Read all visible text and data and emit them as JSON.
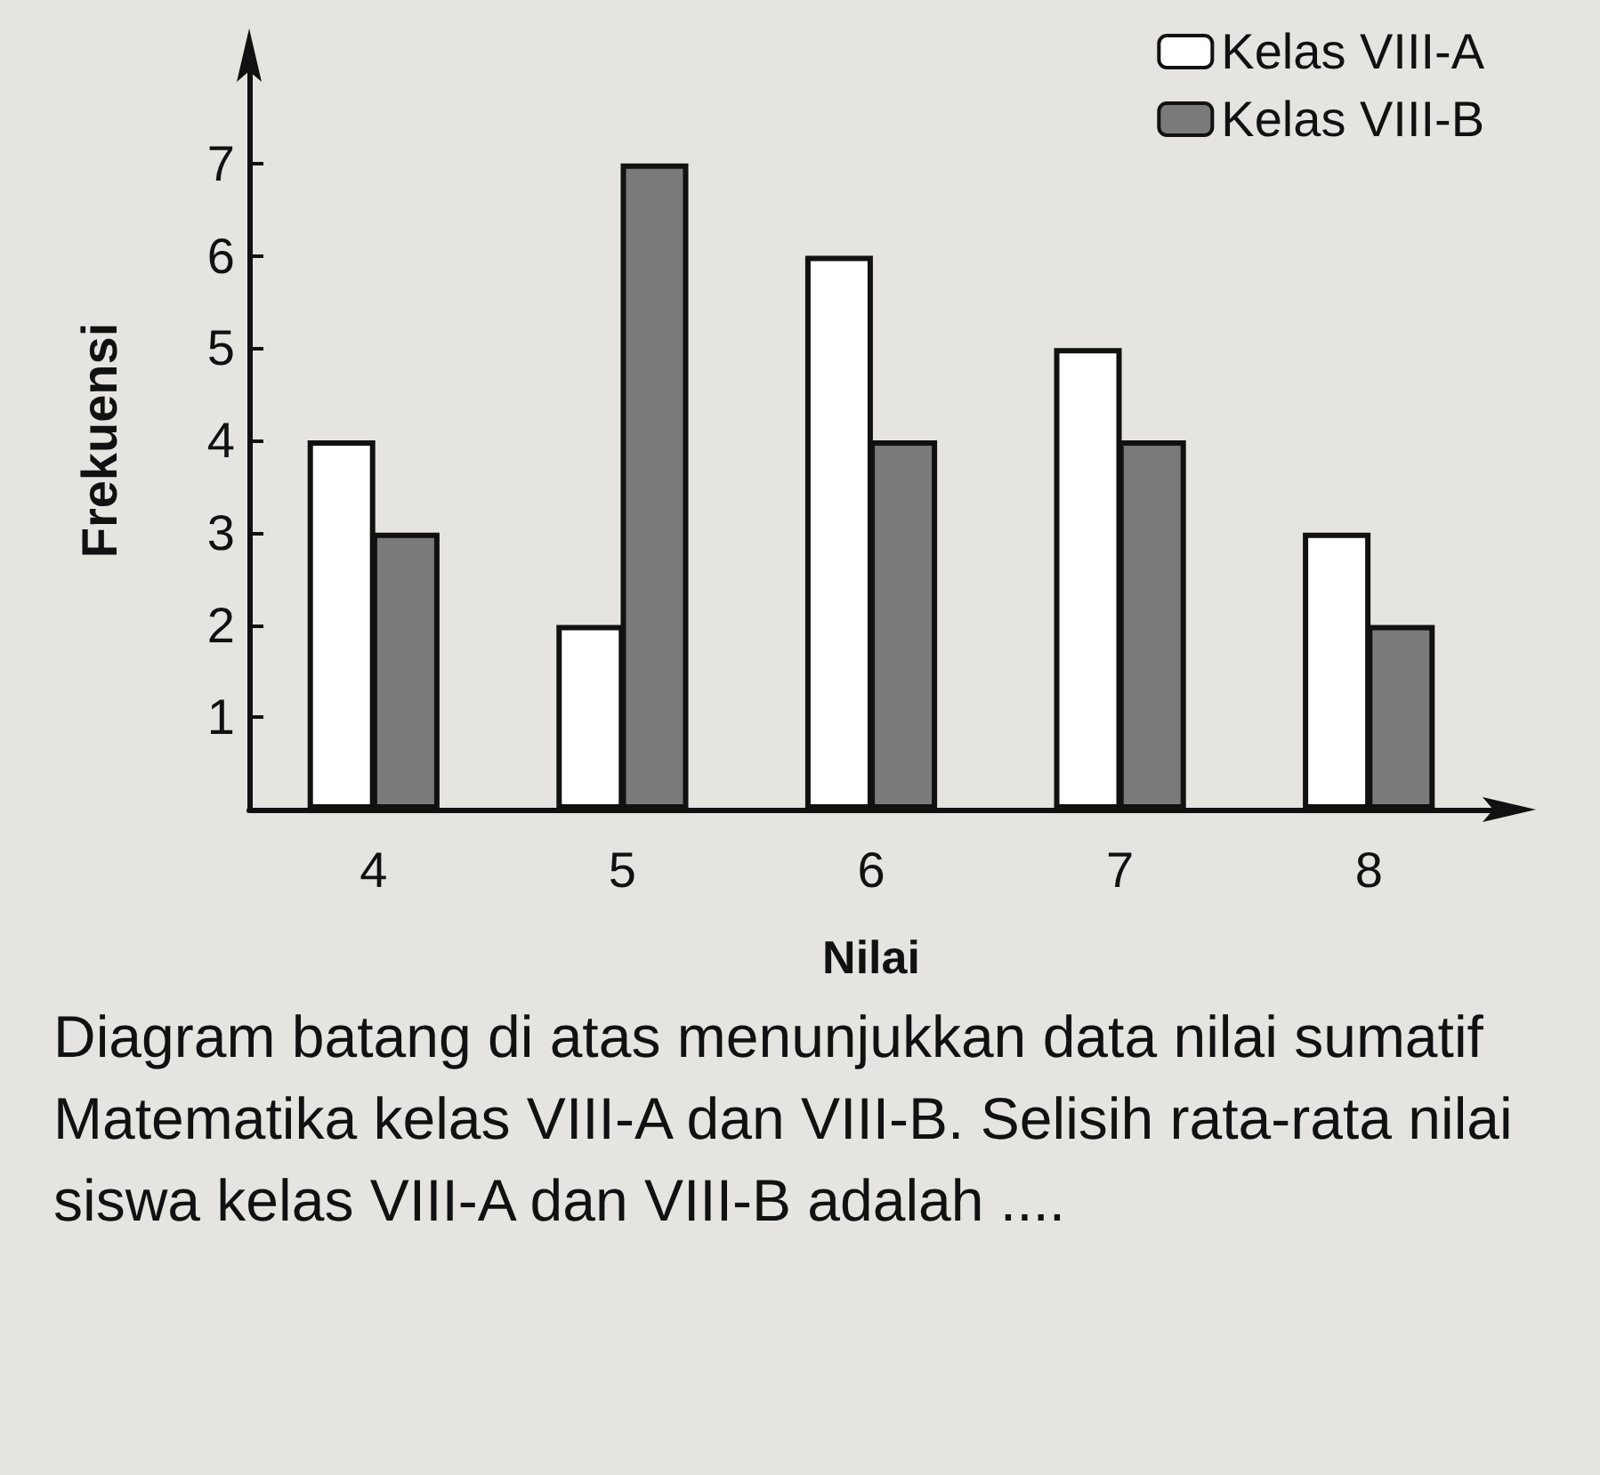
{
  "chart_data": {
    "type": "bar",
    "xlabel": "Nilai",
    "ylabel": "Frekuensi",
    "categories": [
      "4",
      "5",
      "6",
      "7",
      "8"
    ],
    "series": [
      {
        "name": "Kelas VIII-A",
        "color": "#ffffff",
        "values": [
          4,
          2,
          6,
          5,
          3
        ]
      },
      {
        "name": "Kelas VIII-B",
        "color": "#7a7a7a",
        "values": [
          3,
          7,
          4,
          4,
          2
        ]
      }
    ],
    "ylim": [
      0,
      8
    ],
    "yticks": [
      1,
      2,
      3,
      4,
      5,
      6,
      7
    ],
    "legend": "top right",
    "annotations": [
      "Diagram batang di atas menunjukkan data nilai sumatif Matematika kelas VIII-A dan VIII-B. Selisih rata-rata nilai siswa kelas VIII-A dan VIII-B adalah ...."
    ]
  }
}
